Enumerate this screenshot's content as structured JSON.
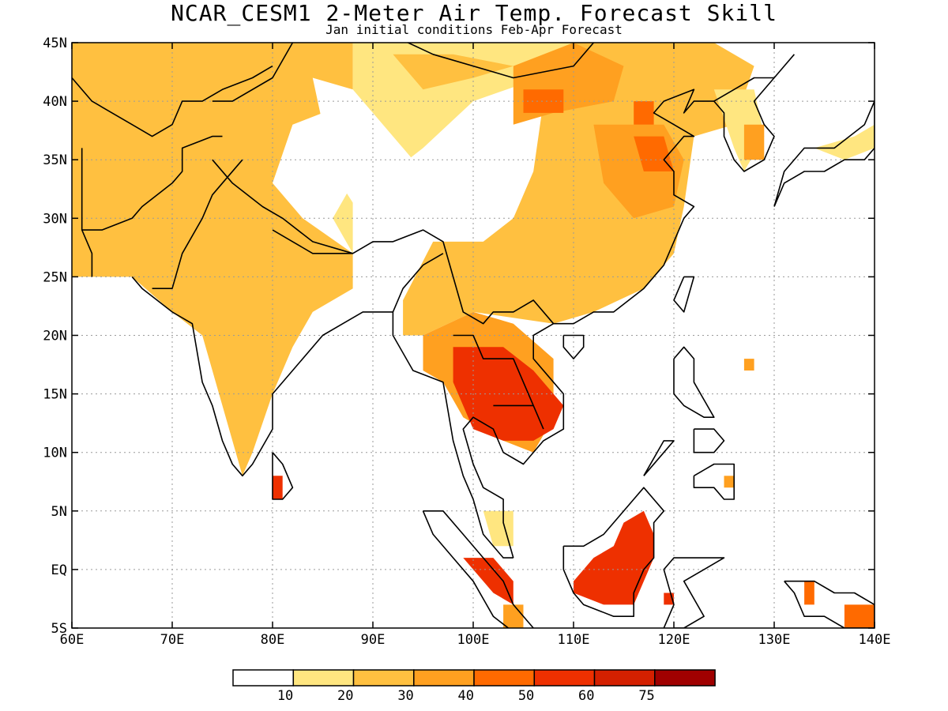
{
  "title": "NCAR_CESM1 2-Meter Air Temp. Forecast Skill",
  "subtitle": "Jan initial conditions  Feb-Apr Forecast",
  "map": {
    "lon_range": [
      60,
      140
    ],
    "lat_range": [
      -5,
      45
    ],
    "grid": true,
    "lon_ticks": [
      {
        "v": 60,
        "label": "60E"
      },
      {
        "v": 70,
        "label": "70E"
      },
      {
        "v": 80,
        "label": "80E"
      },
      {
        "v": 90,
        "label": "90E"
      },
      {
        "v": 100,
        "label": "100E"
      },
      {
        "v": 110,
        "label": "110E"
      },
      {
        "v": 120,
        "label": "120E"
      },
      {
        "v": 130,
        "label": "130E"
      },
      {
        "v": 140,
        "label": "140E"
      }
    ],
    "lat_ticks": [
      {
        "v": 45,
        "label": "45N"
      },
      {
        "v": 40,
        "label": "40N"
      },
      {
        "v": 35,
        "label": "35N"
      },
      {
        "v": 30,
        "label": "30N"
      },
      {
        "v": 25,
        "label": "25N"
      },
      {
        "v": 20,
        "label": "20N"
      },
      {
        "v": 15,
        "label": "15N"
      },
      {
        "v": 10,
        "label": "10N"
      },
      {
        "v": 5,
        "label": "5N"
      },
      {
        "v": 0,
        "label": "EQ"
      },
      {
        "v": -5,
        "label": "5S"
      }
    ]
  },
  "colorbar": {
    "colors": [
      "#ffffff",
      "#ffe680",
      "#ffc040",
      "#ffa020",
      "#ff6a00",
      "#ee3000",
      "#d42000",
      "#a00000"
    ],
    "labels": [
      "10",
      "20",
      "30",
      "40",
      "50",
      "60",
      "75"
    ]
  },
  "chart_data": {
    "type": "heatmap",
    "title": "NCAR_CESM1 2-Meter Air Temp. Forecast Skill",
    "subtitle": "Jan initial conditions  Feb-Apr Forecast",
    "variable": "2-Meter Air Temp. Forecast Skill",
    "x_range": [
      60,
      140
    ],
    "y_range": [
      -5,
      45
    ],
    "levels": [
      10,
      20,
      30,
      40,
      50,
      60,
      75
    ],
    "regions": [
      {
        "level_index": 2,
        "points": [
          [
            60,
            45
          ],
          [
            88,
            45
          ],
          [
            88,
            40
          ],
          [
            82,
            38
          ],
          [
            80,
            33
          ],
          [
            83,
            30
          ],
          [
            88,
            27
          ],
          [
            88,
            24
          ],
          [
            84,
            22
          ],
          [
            82,
            19
          ],
          [
            80,
            15
          ],
          [
            78,
            10
          ],
          [
            77,
            8
          ],
          [
            75,
            14
          ],
          [
            73,
            20
          ],
          [
            70,
            22
          ],
          [
            66,
            25
          ],
          [
            60,
            25
          ]
        ]
      },
      {
        "level_index": 1,
        "points": [
          [
            88,
            45
          ],
          [
            110,
            45
          ],
          [
            110,
            43
          ],
          [
            100,
            40
          ],
          [
            95,
            36
          ],
          [
            92,
            34
          ],
          [
            88,
            33
          ],
          [
            86,
            30
          ],
          [
            88,
            27
          ],
          [
            88,
            40
          ]
        ]
      },
      {
        "level_index": 2,
        "points": [
          [
            92,
            44
          ],
          [
            98,
            44
          ],
          [
            104,
            43
          ],
          [
            100,
            42
          ],
          [
            95,
            41
          ]
        ]
      },
      {
        "level_index": 0,
        "points": [
          [
            84,
            42
          ],
          [
            88,
            41
          ],
          [
            90,
            39
          ],
          [
            94,
            35
          ],
          [
            95,
            31
          ],
          [
            93,
            29
          ],
          [
            89,
            30
          ],
          [
            86,
            34
          ],
          [
            85,
            38
          ]
        ]
      },
      {
        "level_index": 0,
        "points": [
          [
            88,
            30
          ],
          [
            96,
            30
          ],
          [
            100,
            33
          ],
          [
            105,
            37
          ],
          [
            107,
            40
          ],
          [
            106,
            34
          ],
          [
            104,
            30
          ],
          [
            101,
            28
          ],
          [
            97,
            27
          ],
          [
            93,
            28
          ]
        ]
      },
      {
        "level_index": 2,
        "points": [
          [
            110,
            45
          ],
          [
            124,
            45
          ],
          [
            128,
            43
          ],
          [
            126,
            38
          ],
          [
            122,
            37
          ],
          [
            121,
            31
          ],
          [
            120,
            27
          ],
          [
            117,
            24
          ],
          [
            112,
            22
          ],
          [
            108,
            21
          ],
          [
            100,
            22
          ],
          [
            95,
            20
          ],
          [
            93,
            23
          ],
          [
            96,
            28
          ],
          [
            101,
            28
          ],
          [
            104,
            30
          ],
          [
            106,
            34
          ],
          [
            107,
            40
          ],
          [
            110,
            42
          ]
        ]
      },
      {
        "level_index": 3,
        "points": [
          [
            104,
            43
          ],
          [
            110,
            45
          ],
          [
            115,
            43
          ],
          [
            114,
            40
          ],
          [
            108,
            39
          ],
          [
            104,
            38
          ]
        ]
      },
      {
        "level_index": 3,
        "points": [
          [
            112,
            38
          ],
          [
            119,
            38
          ],
          [
            121,
            35
          ],
          [
            120,
            31
          ],
          [
            116,
            30
          ],
          [
            113,
            33
          ]
        ]
      },
      {
        "level_index": 4,
        "points": [
          [
            116,
            40
          ],
          [
            118,
            40
          ],
          [
            118,
            38
          ],
          [
            116,
            38
          ]
        ]
      },
      {
        "level_index": 4,
        "points": [
          [
            105,
            41
          ],
          [
            109,
            41
          ],
          [
            109,
            39
          ],
          [
            105,
            39
          ]
        ]
      },
      {
        "level_index": 4,
        "points": [
          [
            116,
            37
          ],
          [
            119,
            37
          ],
          [
            120,
            34
          ],
          [
            117,
            34
          ]
        ]
      },
      {
        "level_index": 1,
        "points": [
          [
            124,
            41
          ],
          [
            128,
            41
          ],
          [
            129,
            37
          ],
          [
            127,
            34
          ],
          [
            126,
            36
          ]
        ]
      },
      {
        "level_index": 3,
        "points": [
          [
            127,
            38
          ],
          [
            129,
            38
          ],
          [
            129,
            35
          ],
          [
            127,
            35
          ]
        ]
      },
      {
        "level_index": 1,
        "points": [
          [
            134,
            36
          ],
          [
            138,
            37
          ],
          [
            140,
            38
          ],
          [
            140,
            36
          ],
          [
            137,
            35
          ]
        ]
      },
      {
        "level_index": 3,
        "points": [
          [
            95,
            20
          ],
          [
            100,
            22
          ],
          [
            104,
            21
          ],
          [
            108,
            18
          ],
          [
            108,
            13
          ],
          [
            106,
            10
          ],
          [
            103,
            11
          ],
          [
            99,
            13
          ],
          [
            97,
            16
          ],
          [
            95,
            17
          ]
        ]
      },
      {
        "level_index": 5,
        "points": [
          [
            98,
            19
          ],
          [
            103,
            19
          ],
          [
            106,
            17
          ],
          [
            109,
            14
          ],
          [
            108,
            12
          ],
          [
            106,
            11
          ],
          [
            103,
            11
          ],
          [
            100,
            12
          ],
          [
            99,
            14
          ],
          [
            98,
            16
          ]
        ]
      },
      {
        "level_index": 2,
        "points": [
          [
            93,
            23
          ],
          [
            96,
            23
          ],
          [
            95,
            20
          ],
          [
            93,
            20
          ]
        ]
      },
      {
        "level_index": 5,
        "points": [
          [
            80,
            8
          ],
          [
            81,
            8
          ],
          [
            81,
            6
          ],
          [
            80,
            6
          ]
        ]
      },
      {
        "level_index": 1,
        "points": [
          [
            101,
            5
          ],
          [
            104,
            5
          ],
          [
            104,
            2
          ],
          [
            102,
            2
          ]
        ]
      },
      {
        "level_index": 5,
        "points": [
          [
            99,
            1
          ],
          [
            102,
            1
          ],
          [
            104,
            -1
          ],
          [
            104,
            -3
          ],
          [
            102,
            -2
          ],
          [
            100,
            0
          ]
        ]
      },
      {
        "level_index": 3,
        "points": [
          [
            103,
            -3
          ],
          [
            105,
            -3
          ],
          [
            105,
            -5
          ],
          [
            103,
            -5
          ]
        ]
      },
      {
        "level_index": 5,
        "points": [
          [
            110,
            -1
          ],
          [
            112,
            1
          ],
          [
            114,
            2
          ],
          [
            115,
            4
          ],
          [
            117,
            5
          ],
          [
            118,
            3
          ],
          [
            118,
            1
          ],
          [
            117,
            -1
          ],
          [
            116,
            -3
          ],
          [
            113,
            -3
          ],
          [
            110,
            -2
          ]
        ]
      },
      {
        "level_index": 5,
        "points": [
          [
            119,
            -2
          ],
          [
            120,
            -2
          ],
          [
            120,
            -3
          ],
          [
            119,
            -3
          ]
        ]
      },
      {
        "level_index": 3,
        "points": [
          [
            127,
            18
          ],
          [
            128,
            18
          ],
          [
            128,
            17
          ],
          [
            127,
            17
          ]
        ]
      },
      {
        "level_index": 3,
        "points": [
          [
            125,
            8
          ],
          [
            126,
            8
          ],
          [
            126,
            7
          ],
          [
            125,
            7
          ]
        ]
      },
      {
        "level_index": 4,
        "points": [
          [
            133,
            -1
          ],
          [
            134,
            -1
          ],
          [
            134,
            -3
          ],
          [
            133,
            -3
          ]
        ]
      },
      {
        "level_index": 4,
        "points": [
          [
            137,
            -3
          ],
          [
            140,
            -3
          ],
          [
            140,
            -5
          ],
          [
            137,
            -5
          ]
        ]
      }
    ]
  }
}
